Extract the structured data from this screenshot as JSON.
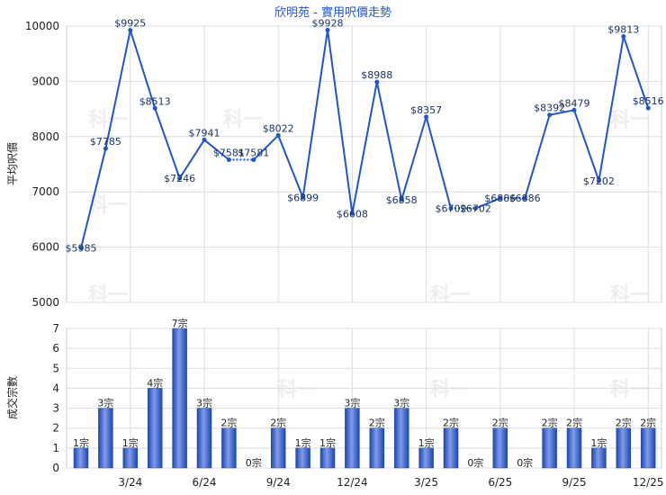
{
  "chart_data": [
    {
      "type": "line",
      "title": "欣明苑 - 實用呎價走勢",
      "ylabel": "平均呎價",
      "ylim": [
        5000,
        10000
      ],
      "yticks": [
        "5000",
        "6000",
        "7000",
        "8000",
        "9000",
        "10000"
      ],
      "xticks": [
        {
          "index": 2,
          "label": "3/24"
        },
        {
          "index": 5,
          "label": "6/24"
        },
        {
          "index": 8,
          "label": "9/24"
        },
        {
          "index": 11,
          "label": "12/24"
        },
        {
          "index": 14,
          "label": "3/25"
        },
        {
          "index": 17,
          "label": "6/25"
        },
        {
          "index": 20,
          "label": "9/25"
        },
        {
          "index": 23,
          "label": "12/25"
        }
      ],
      "values": [
        5985,
        7785,
        9925,
        8513,
        7246,
        7941,
        7581,
        7581,
        8022,
        6899,
        9928,
        6608,
        8988,
        6858,
        8357,
        6702,
        6702,
        6886,
        6886,
        8392,
        8479,
        7202,
        9813,
        8516
      ],
      "labels": [
        "$5985",
        "$7785",
        "$9925",
        "$8513",
        "$7246",
        "$7941",
        "$7581",
        "$7581",
        "$8022",
        "$6899",
        "$9928",
        "$6608",
        "$8988",
        "$6858",
        "$8357",
        "$6702",
        "$6702",
        "$6886",
        "$6886",
        "$8392",
        "$8479",
        "$7202",
        "$9813",
        "$8516"
      ],
      "carried_forward": [
        7,
        16,
        18
      ],
      "color": "#2255cc"
    },
    {
      "type": "bar",
      "ylabel": "成交宗數",
      "ylim": [
        0,
        7
      ],
      "yticks": [
        "0",
        "1",
        "2",
        "3",
        "4",
        "5",
        "6",
        "7"
      ],
      "values": [
        1,
        3,
        1,
        4,
        7,
        3,
        2,
        0,
        2,
        1,
        1,
        3,
        2,
        3,
        1,
        2,
        0,
        2,
        0,
        2,
        2,
        1,
        2,
        2
      ],
      "labels": [
        "1宗",
        "3宗",
        "1宗",
        "4宗",
        "7宗",
        "3宗",
        "2宗",
        "0宗",
        "2宗",
        "1宗",
        "1宗",
        "3宗",
        "2宗",
        "3宗",
        "1宗",
        "2宗",
        "0宗",
        "2宗",
        "0宗",
        "2宗",
        "2宗",
        "1宗",
        "2宗",
        "2宗"
      ],
      "color": "#3a62c8"
    }
  ],
  "watermark": "科一"
}
